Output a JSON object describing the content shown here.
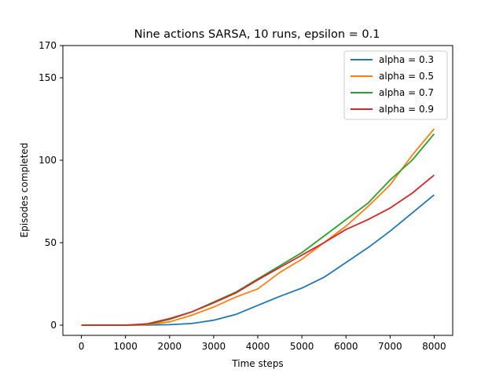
{
  "chart_data": {
    "type": "line",
    "title": "Nine actions SARSA, 10 runs, epsilon = 0.1",
    "xlabel": "Time steps",
    "ylabel": "Episodes completed",
    "xlim": [
      -420,
      8420
    ],
    "ylim": [
      -5,
      170
    ],
    "x_ticks": [
      0,
      1000,
      2000,
      3000,
      4000,
      5000,
      6000,
      7000,
      8000
    ],
    "y_ticks": [
      0,
      50,
      100,
      150,
      170
    ],
    "grid": false,
    "legend_position": "upper right",
    "series": [
      {
        "name": "alpha = 0.3",
        "color": "#1f77b4",
        "x": [
          0,
          1000,
          1500,
          2000,
          2500,
          3000,
          3500,
          4000,
          4500,
          5000,
          5500,
          6000,
          6500,
          7000,
          7500,
          8000
        ],
        "y": [
          0,
          0,
          0.1,
          0.3,
          1,
          3,
          6.5,
          12,
          17.5,
          22.5,
          29,
          38,
          47,
          57,
          68,
          79
        ]
      },
      {
        "name": "alpha = 0.5",
        "color": "#ff7f0e",
        "x": [
          0,
          1000,
          1500,
          2000,
          2500,
          3000,
          3500,
          4000,
          4500,
          5000,
          5500,
          6000,
          6500,
          7000,
          7500,
          8000
        ],
        "y": [
          0,
          0,
          0.3,
          2,
          6,
          11,
          17,
          22,
          32,
          40,
          50,
          60,
          72,
          85,
          103,
          119
        ]
      },
      {
        "name": "alpha = 0.7",
        "color": "#2ca02c",
        "x": [
          0,
          1000,
          1500,
          2000,
          2500,
          3000,
          3500,
          4000,
          4500,
          5000,
          5500,
          6000,
          6500,
          7000,
          7500,
          8000
        ],
        "y": [
          0,
          0,
          0.5,
          3.5,
          8,
          14,
          20,
          28,
          36,
          44,
          54,
          64,
          74,
          88,
          100,
          116
        ]
      },
      {
        "name": "alpha = 0.9",
        "color": "#d62728",
        "x": [
          0,
          1000,
          1500,
          2000,
          2500,
          3000,
          3500,
          4000,
          4500,
          5000,
          5500,
          6000,
          6500,
          7000,
          7500,
          8000
        ],
        "y": [
          0,
          0,
          0.8,
          4,
          8,
          13.5,
          19.5,
          27.5,
          35,
          42.5,
          50,
          58,
          64,
          71,
          80,
          91
        ]
      }
    ]
  }
}
